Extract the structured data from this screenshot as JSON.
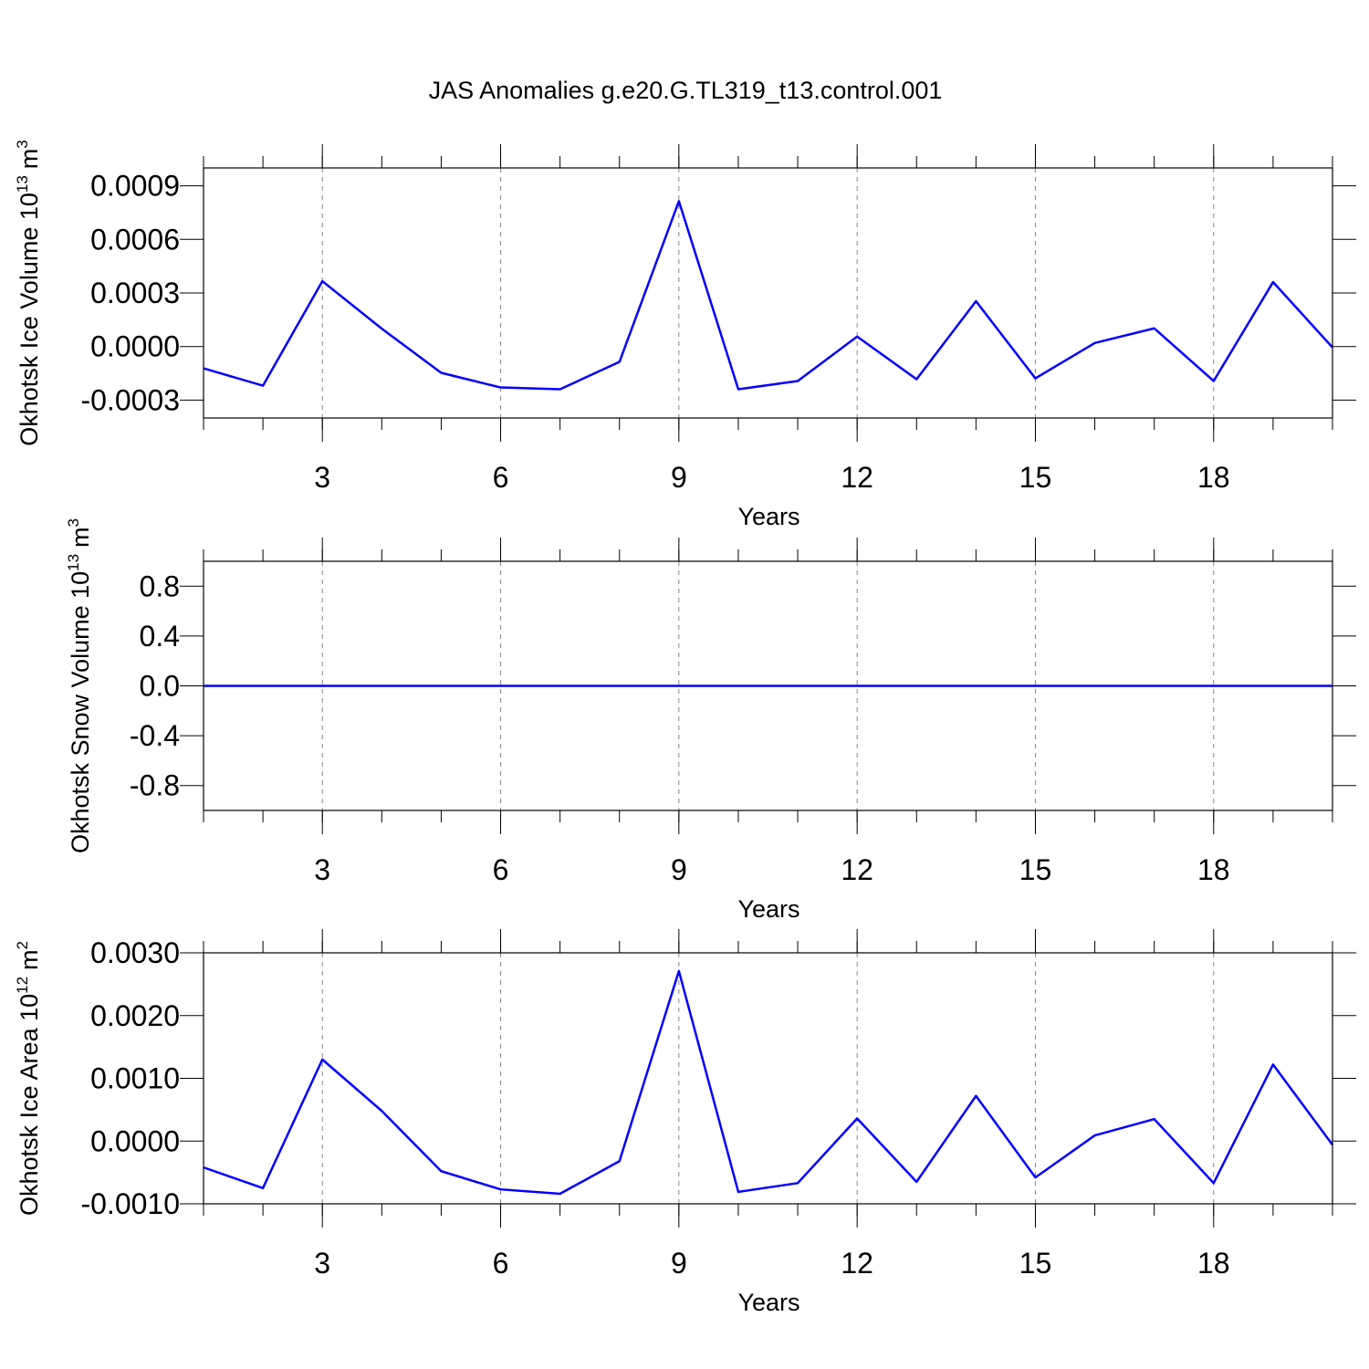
{
  "title": "JAS Anomalies g.e20.G.TL319_t13.control.001",
  "chart_data": [
    {
      "type": "line",
      "x": [
        1,
        2,
        3,
        4,
        5,
        6,
        7,
        8,
        9,
        10,
        11,
        12,
        13,
        14,
        15,
        16,
        17,
        18,
        19,
        20
      ],
      "series": [
        {
          "color": "#0000ff",
          "values": [
            -0.000122,
            -0.000219,
            0.000366,
            0.0001,
            -0.000147,
            -0.000229,
            -0.000239,
            -8.6e-05,
            0.000814,
            -0.000239,
            -0.000193,
            5.6e-05,
            -0.000183,
            0.000254,
            -0.000178,
            2e-05,
            0.000102,
            -0.000193,
            0.000361,
            -5e-06
          ]
        }
      ],
      "xlim": [
        1,
        20
      ],
      "xticks": [
        3,
        6,
        9,
        12,
        15,
        18
      ],
      "ylim": [
        -0.0004,
        0.001
      ],
      "yticks": [
        -0.0003,
        {
          "value": 0,
          "label": "0.0000"
        },
        0.0003,
        0.0006,
        0.0009
      ],
      "xlabel": "Years",
      "ylabel": {
        "text": "Okhotsk Ice Volume 10",
        "exponent": "13",
        "unit": "m",
        "unit_exponent": "3"
      },
      "grid": "x-dashed"
    },
    {
      "type": "line",
      "x": [
        1,
        2,
        3,
        4,
        5,
        6,
        7,
        8,
        9,
        10,
        11,
        12,
        13,
        14,
        15,
        16,
        17,
        18,
        19,
        20
      ],
      "series": [
        {
          "color": "#0000ff",
          "values": [
            0,
            0,
            0,
            0,
            0,
            0,
            0,
            0,
            0,
            0,
            0,
            0,
            0,
            0,
            0,
            0,
            0,
            0,
            0,
            0
          ]
        }
      ],
      "xlim": [
        1,
        20
      ],
      "xticks": [
        3,
        6,
        9,
        12,
        15,
        18
      ],
      "ylim": [
        -1,
        1
      ],
      "yticks": [
        -0.8,
        -0.4,
        {
          "value": 0,
          "label": "0.0"
        },
        0.4,
        0.8
      ],
      "xlabel": "Years",
      "ylabel": {
        "text": "Okhotsk Snow Volume 10",
        "exponent": "13",
        "unit": "m",
        "unit_exponent": "3"
      },
      "grid": "x-dashed"
    },
    {
      "type": "line",
      "x": [
        1,
        2,
        3,
        4,
        5,
        6,
        7,
        8,
        9,
        10,
        11,
        12,
        13,
        14,
        15,
        16,
        17,
        18,
        19,
        20
      ],
      "series": [
        {
          "color": "#0000ff",
          "values": [
            -0.00042,
            -0.00075,
            0.0013,
            0.00048,
            -0.00048,
            -0.00077,
            -0.00084,
            -0.00032,
            0.00271,
            -0.00081,
            -0.00067,
            0.00036,
            -0.00065,
            0.00072,
            -0.00058,
            9e-05,
            0.00035,
            -0.00067,
            0.00122,
            -6e-05
          ]
        }
      ],
      "xlim": [
        1,
        20
      ],
      "xticks": [
        3,
        6,
        9,
        12,
        15,
        18
      ],
      "ylim": [
        -0.001,
        0.003
      ],
      "yticks": [
        {
          "value": -0.001,
          "label": "-0.0010"
        },
        {
          "value": 0,
          "label": "0.0000"
        },
        {
          "value": 0.001,
          "label": "0.0010"
        },
        {
          "value": 0.002,
          "label": "0.0020"
        },
        {
          "value": 0.003,
          "label": "0.0030"
        }
      ],
      "xlabel": "Years",
      "ylabel": {
        "text": "Okhotsk Ice Area 10",
        "exponent": "12",
        "unit": "m",
        "unit_exponent": "2"
      },
      "grid": "x-dashed"
    }
  ]
}
